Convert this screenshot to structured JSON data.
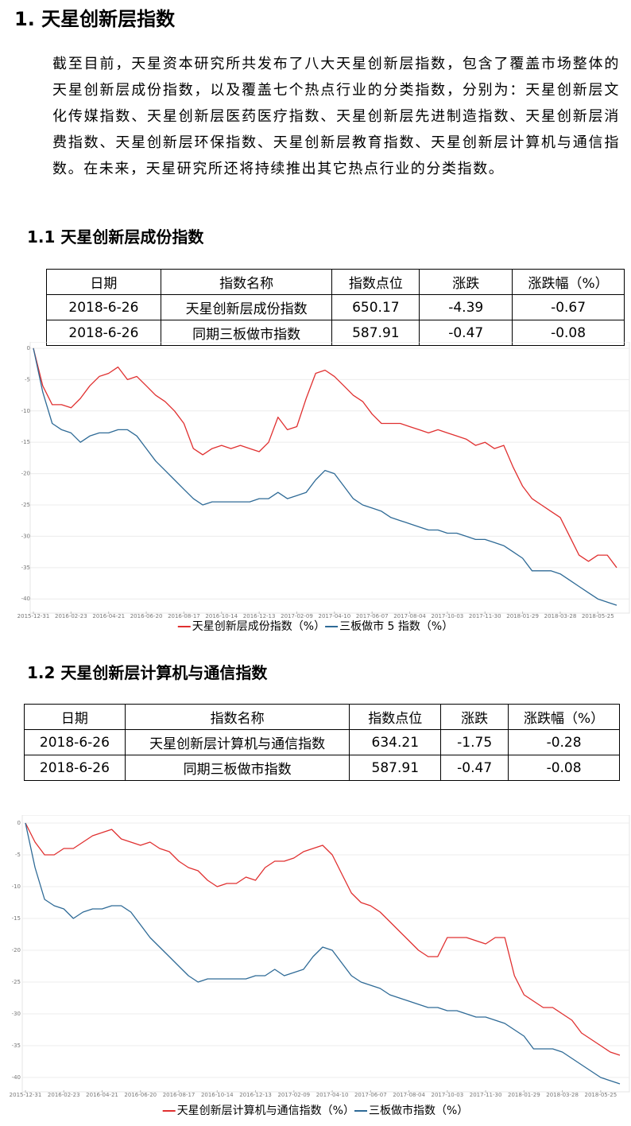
{
  "heading": "1. 天星创新层指数",
  "paragraph": "截至目前，天星资本研究所共发布了八大天星创新层指数，包含了覆盖市场整体的天星创新层成份指数，以及覆盖七个热点行业的分类指数，分别为：天星创新层文化传媒指数、天星创新层医药医疗指数、天星创新层先进制造指数、天星创新层消费指数、天星创新层环保指数、天星创新层教育指数、天星创新层计算机与通信指数。在未来，天星研究所还将持续推出其它热点行业的分类指数。",
  "sections": [
    {
      "title": "1.1 天星创新层成份指数",
      "table": {
        "header": [
          "日期",
          "指数名称",
          "指数点位",
          "涨跌",
          "涨跌幅（%）"
        ],
        "rows": [
          [
            "2018-6-26",
            "天星创新层成份指数",
            "650.17",
            "-4.39",
            "-0.67"
          ],
          [
            "2018-6-26",
            "同期三板做市指数",
            "587.91",
            "-0.47",
            "-0.08"
          ]
        ]
      }
    },
    {
      "title": "1.2 天星创新层计算机与通信指数",
      "table": {
        "header": [
          "日期",
          "指数名称",
          "指数点位",
          "涨跌",
          "涨跌幅（%）"
        ],
        "rows": [
          [
            "2018-6-26",
            "天星创新层计算机与通信指数",
            "634.21",
            "-1.75",
            "-0.28"
          ],
          [
            "2018-6-26",
            "同期三板做市指数",
            "587.91",
            "-0.47",
            "-0.08"
          ]
        ]
      }
    }
  ],
  "chart_data": [
    {
      "type": "line",
      "categories": [
        "2015-12-31",
        null,
        null,
        null,
        "2016-02-23",
        null,
        null,
        null,
        "2016-04-21",
        null,
        null,
        null,
        "2016-06-20",
        null,
        null,
        null,
        "2016-08-17",
        null,
        null,
        null,
        "2016-10-14",
        null,
        null,
        null,
        "2016-12-13",
        null,
        null,
        null,
        "2017-02-09",
        null,
        null,
        null,
        "2017-04-10",
        null,
        null,
        null,
        "2017-06-07",
        null,
        null,
        null,
        "2017-08-04",
        null,
        null,
        null,
        "2017-10-03",
        null,
        null,
        null,
        "2017-11-30",
        null,
        null,
        null,
        "2018-01-29",
        null,
        null,
        null,
        "2018-03-28",
        null,
        null,
        null,
        "2018-05-25",
        null,
        null
      ],
      "series": [
        {
          "name": "天星创新层成份指数（%）",
          "color": "#e03030",
          "values": [
            0,
            -6,
            -9,
            -9,
            -9.5,
            -8,
            -6,
            -4.5,
            -4,
            -3,
            -5,
            -4.5,
            -6,
            -7.5,
            -8.5,
            -10,
            -12,
            -16,
            -17,
            -16,
            -15.5,
            -16,
            -15.5,
            -16,
            -16.5,
            -15,
            -11,
            -13,
            -12.5,
            -8,
            -4,
            -3.5,
            -4.5,
            -6,
            -7.5,
            -8.5,
            -10.5,
            -12,
            -12,
            -12,
            -12.5,
            -13,
            -13.5,
            -13,
            -13.5,
            -14,
            -14.5,
            -15.5,
            -15,
            -16,
            -15.5,
            -19,
            -22,
            -24,
            -25,
            -26,
            -27,
            -30,
            -33,
            -34,
            -33,
            -33,
            -35
          ]
        },
        {
          "name": "三板做市 5 指数（%）",
          "color": "#2e6a96",
          "values": [
            0,
            -7,
            -12,
            -13,
            -13.5,
            -15,
            -14,
            -13.5,
            -13.5,
            -13,
            -13,
            -14,
            -16,
            -18,
            -19.5,
            -21,
            -22.5,
            -24,
            -25,
            -24.5,
            -24.5,
            -24.5,
            -24.5,
            -24.5,
            -24,
            -24,
            -23,
            -24,
            -23.5,
            -23,
            -21,
            -19.5,
            -20,
            -22,
            -24,
            -25,
            -25.5,
            -26,
            -27,
            -27.5,
            -28,
            -28.5,
            -29,
            -29,
            -29.5,
            -29.5,
            -30,
            -30.5,
            -30.5,
            -31,
            -31.5,
            -32.5,
            -33.5,
            -35.5,
            -35.5,
            -35.5,
            -36,
            -37,
            -38,
            -39,
            -40,
            -40.5,
            -41
          ]
        }
      ],
      "ylim": [
        -42,
        0.5
      ],
      "yticks": [
        0,
        -5,
        -10,
        -15,
        -20,
        -25,
        -30,
        -35,
        -40
      ],
      "grid": true
    },
    {
      "type": "line",
      "categories": [
        "2015-12-31",
        null,
        null,
        null,
        "2016-02-23",
        null,
        null,
        null,
        "2016-04-21",
        null,
        null,
        null,
        "2016-06-20",
        null,
        null,
        null,
        "2016-08-17",
        null,
        null,
        null,
        "2016-10-14",
        null,
        null,
        null,
        "2016-12-13",
        null,
        null,
        null,
        "2017-02-09",
        null,
        null,
        null,
        "2017-04-10",
        null,
        null,
        null,
        "2017-06-07",
        null,
        null,
        null,
        "2017-08-04",
        null,
        null,
        null,
        "2017-10-03",
        null,
        null,
        null,
        "2017-11-30",
        null,
        null,
        null,
        "2018-01-29",
        null,
        null,
        null,
        "2018-03-28",
        null,
        null,
        null,
        "2018-05-25",
        null,
        null
      ],
      "series": [
        {
          "name": "天星创新层计算机与通信指数（%）",
          "color": "#e03030",
          "values": [
            0,
            -3,
            -5,
            -5,
            -4,
            -4,
            -3,
            -2,
            -1.5,
            -1,
            -2.5,
            -3,
            -3.5,
            -3,
            -4,
            -4.5,
            -6,
            -7,
            -7.5,
            -9,
            -10,
            -9.5,
            -9.5,
            -8.5,
            -9,
            -7,
            -6,
            -6,
            -5.5,
            -4.5,
            -4,
            -3.5,
            -5,
            -8,
            -11,
            -12.5,
            -13,
            -14,
            -15.5,
            -17,
            -18.5,
            -20,
            -21,
            -21,
            -18,
            -18,
            -18,
            -18.5,
            -19,
            -18,
            -18,
            -24,
            -27,
            -28,
            -29,
            -29,
            -30,
            -31,
            -33,
            -34,
            -35,
            -36,
            -36.5
          ]
        },
        {
          "name": "三板做市指数（%）",
          "color": "#2e6a96",
          "values": [
            0,
            -7,
            -12,
            -13,
            -13.5,
            -15,
            -14,
            -13.5,
            -13.5,
            -13,
            -13,
            -14,
            -16,
            -18,
            -19.5,
            -21,
            -22.5,
            -24,
            -25,
            -24.5,
            -24.5,
            -24.5,
            -24.5,
            -24.5,
            -24,
            -24,
            -23,
            -24,
            -23.5,
            -23,
            -21,
            -19.5,
            -20,
            -22,
            -24,
            -25,
            -25.5,
            -26,
            -27,
            -27.5,
            -28,
            -28.5,
            -29,
            -29,
            -29.5,
            -29.5,
            -30,
            -30.5,
            -30.5,
            -31,
            -31.5,
            -32.5,
            -33.5,
            -35.5,
            -35.5,
            -35.5,
            -36,
            -37,
            -38,
            -39,
            -40,
            -40.5,
            -41
          ]
        }
      ],
      "ylim": [
        -42,
        0.5
      ],
      "yticks": [
        0,
        -5,
        -10,
        -15,
        -20,
        -25,
        -30,
        -35,
        -40
      ],
      "grid": true
    }
  ]
}
